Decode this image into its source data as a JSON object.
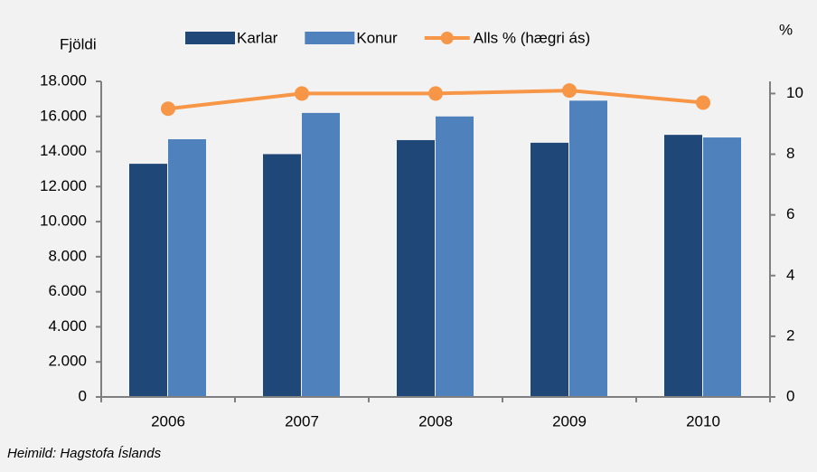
{
  "chart_data": {
    "type": "bar",
    "ylabel": "Fjöldi",
    "y2label": "%",
    "source": "Heimild: Hagstofa Íslands",
    "categories": [
      "2006",
      "2007",
      "2008",
      "2009",
      "2010"
    ],
    "series": [
      {
        "name": "Karlar",
        "color": "#1f4778",
        "type": "bar",
        "values": [
          13300,
          13850,
          14650,
          14500,
          14950
        ]
      },
      {
        "name": "Konur",
        "color": "#4f81bd",
        "type": "bar",
        "values": [
          14700,
          16200,
          16000,
          16900,
          14800
        ]
      },
      {
        "name": "Alls % (hægri ás)",
        "color": "#f79646",
        "type": "line",
        "axis": "y2",
        "values": [
          9.5,
          10.0,
          10.0,
          10.1,
          9.7
        ]
      }
    ],
    "ylim": [
      0,
      18000
    ],
    "yticks": [
      0,
      {
        "value": 2000,
        "label": "2.000"
      },
      {
        "value": 4000,
        "label": "4.000"
      },
      {
        "value": 6000,
        "label": "6.000"
      },
      {
        "value": 8000,
        "label": "8.000"
      },
      {
        "value": 10000,
        "label": "10.000"
      },
      {
        "value": 12000,
        "label": "12.000"
      },
      {
        "value": 14000,
        "label": "14.000"
      },
      {
        "value": 16000,
        "label": "16.000"
      },
      {
        "value": 18000,
        "label": "18.000"
      }
    ],
    "y2lim": [
      0,
      10.4
    ],
    "y2ticks": [
      0,
      2,
      4,
      6,
      8,
      10
    ],
    "legend": "top"
  }
}
